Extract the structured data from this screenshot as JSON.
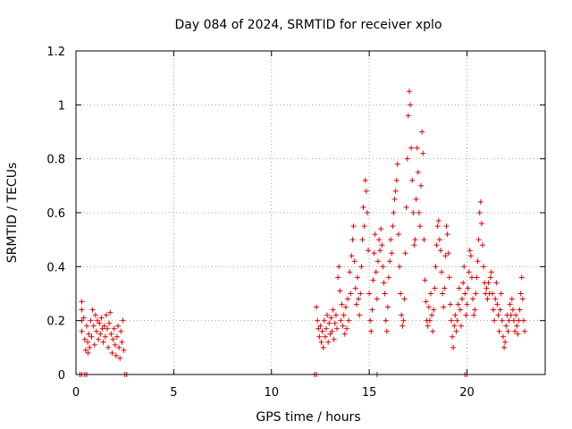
{
  "chart_data": {
    "type": "scatter",
    "title": "Day 084 of 2024, SRMTID for receiver xplo",
    "xlabel": "GPS time / hours",
    "ylabel": "SRMTID / TECUs",
    "xlim": [
      0,
      24
    ],
    "ylim": [
      0,
      1.2
    ],
    "x_ticks": [
      0,
      5,
      10,
      15,
      20
    ],
    "y_ticks": [
      0,
      0.2,
      0.4,
      0.6,
      0.8,
      1.0,
      1.2
    ],
    "x_tick_labels": [
      "0",
      "5",
      "10",
      "15",
      "20"
    ],
    "y_tick_labels": [
      "0",
      "0.2",
      "0.4",
      "0.6",
      "0.8",
      "1",
      "1.2"
    ],
    "grid": true,
    "marker": "+",
    "color": "#e00000",
    "series": [
      {
        "name": "SRMTID",
        "points": [
          [
            0.2,
            0.0
          ],
          [
            0.3,
            0.0
          ],
          [
            0.45,
            0.0
          ],
          [
            0.55,
            0.0
          ],
          [
            2.5,
            0.0
          ],
          [
            2.6,
            0.0
          ],
          [
            12.2,
            0.0
          ],
          [
            12.3,
            0.0
          ],
          [
            15.4,
            0.0
          ],
          [
            19.9,
            0.0
          ],
          [
            20.0,
            0.0
          ],
          [
            0.3,
            0.27
          ],
          [
            0.3,
            0.24
          ],
          [
            0.3,
            0.2
          ],
          [
            0.3,
            0.16
          ],
          [
            0.4,
            0.21
          ],
          [
            0.45,
            0.13
          ],
          [
            0.5,
            0.09
          ],
          [
            0.55,
            0.18
          ],
          [
            0.6,
            0.12
          ],
          [
            0.62,
            0.08
          ],
          [
            0.65,
            0.15
          ],
          [
            0.7,
            0.1
          ],
          [
            0.75,
            0.2
          ],
          [
            0.8,
            0.14
          ],
          [
            0.85,
            0.24
          ],
          [
            0.9,
            0.18
          ],
          [
            0.95,
            0.11
          ],
          [
            1.0,
            0.22
          ],
          [
            1.05,
            0.16
          ],
          [
            1.1,
            0.2
          ],
          [
            1.15,
            0.13
          ],
          [
            1.2,
            0.19
          ],
          [
            1.25,
            0.15
          ],
          [
            1.3,
            0.21
          ],
          [
            1.35,
            0.17
          ],
          [
            1.4,
            0.12
          ],
          [
            1.45,
            0.18
          ],
          [
            1.5,
            0.14
          ],
          [
            1.55,
            0.22
          ],
          [
            1.6,
            0.17
          ],
          [
            1.65,
            0.1
          ],
          [
            1.7,
            0.19
          ],
          [
            1.75,
            0.23
          ],
          [
            1.8,
            0.15
          ],
          [
            1.85,
            0.08
          ],
          [
            1.9,
            0.13
          ],
          [
            1.95,
            0.17
          ],
          [
            2.0,
            0.11
          ],
          [
            2.05,
            0.07
          ],
          [
            2.1,
            0.14
          ],
          [
            2.15,
            0.18
          ],
          [
            2.2,
            0.1
          ],
          [
            2.25,
            0.06
          ],
          [
            2.3,
            0.16
          ],
          [
            2.35,
            0.12
          ],
          [
            2.4,
            0.2
          ],
          [
            2.45,
            0.09
          ],
          [
            12.3,
            0.25
          ],
          [
            12.35,
            0.2
          ],
          [
            12.4,
            0.17
          ],
          [
            12.45,
            0.14
          ],
          [
            12.5,
            0.18
          ],
          [
            12.55,
            0.12
          ],
          [
            12.6,
            0.16
          ],
          [
            12.65,
            0.1
          ],
          [
            12.7,
            0.2
          ],
          [
            12.75,
            0.14
          ],
          [
            12.8,
            0.17
          ],
          [
            12.85,
            0.22
          ],
          [
            12.9,
            0.12
          ],
          [
            12.95,
            0.19
          ],
          [
            13.0,
            0.15
          ],
          [
            13.05,
            0.21
          ],
          [
            13.1,
            0.16
          ],
          [
            13.15,
            0.24
          ],
          [
            13.2,
            0.13
          ],
          [
            13.25,
            0.19
          ],
          [
            13.3,
            0.22
          ],
          [
            13.35,
            0.17
          ],
          [
            13.4,
            0.36
          ],
          [
            13.45,
            0.4
          ],
          [
            13.5,
            0.31
          ],
          [
            13.55,
            0.2
          ],
          [
            13.6,
            0.26
          ],
          [
            13.65,
            0.18
          ],
          [
            13.7,
            0.22
          ],
          [
            13.75,
            0.15
          ],
          [
            13.8,
            0.25
          ],
          [
            13.85,
            0.17
          ],
          [
            13.9,
            0.28
          ],
          [
            13.95,
            0.2
          ],
          [
            14.0,
            0.38
          ],
          [
            14.05,
            0.3
          ],
          [
            14.1,
            0.44
          ],
          [
            14.15,
            0.5
          ],
          [
            14.2,
            0.55
          ],
          [
            14.25,
            0.42
          ],
          [
            14.3,
            0.32
          ],
          [
            14.35,
            0.26
          ],
          [
            14.4,
            0.36
          ],
          [
            14.45,
            0.28
          ],
          [
            14.5,
            0.22
          ],
          [
            14.55,
            0.3
          ],
          [
            14.6,
            0.4
          ],
          [
            14.65,
            0.5
          ],
          [
            14.7,
            0.62
          ],
          [
            14.75,
            0.55
          ],
          [
            14.8,
            0.72
          ],
          [
            14.85,
            0.68
          ],
          [
            14.9,
            0.6
          ],
          [
            14.95,
            0.46
          ],
          [
            15.0,
            0.3
          ],
          [
            15.05,
            0.2
          ],
          [
            15.1,
            0.16
          ],
          [
            15.15,
            0.24
          ],
          [
            15.2,
            0.35
          ],
          [
            15.25,
            0.45
          ],
          [
            15.3,
            0.52
          ],
          [
            15.35,
            0.38
          ],
          [
            15.4,
            0.28
          ],
          [
            15.45,
            0.42
          ],
          [
            15.5,
            0.5
          ],
          [
            15.55,
            0.46
          ],
          [
            15.6,
            0.54
          ],
          [
            15.65,
            0.48
          ],
          [
            15.7,
            0.4
          ],
          [
            15.75,
            0.34
          ],
          [
            15.8,
            0.3
          ],
          [
            15.85,
            0.2
          ],
          [
            15.9,
            0.16
          ],
          [
            15.95,
            0.25
          ],
          [
            16.0,
            0.36
          ],
          [
            16.05,
            0.42
          ],
          [
            16.1,
            0.5
          ],
          [
            16.15,
            0.45
          ],
          [
            16.2,
            0.55
          ],
          [
            16.25,
            0.6
          ],
          [
            16.3,
            0.65
          ],
          [
            16.35,
            0.68
          ],
          [
            16.4,
            0.72
          ],
          [
            16.45,
            0.78
          ],
          [
            16.5,
            0.52
          ],
          [
            16.55,
            0.4
          ],
          [
            16.6,
            0.3
          ],
          [
            16.65,
            0.22
          ],
          [
            16.7,
            0.18
          ],
          [
            16.75,
            0.2
          ],
          [
            16.8,
            0.28
          ],
          [
            16.85,
            0.45
          ],
          [
            16.9,
            0.62
          ],
          [
            16.95,
            0.8
          ],
          [
            17.0,
            0.96
          ],
          [
            17.05,
            1.05
          ],
          [
            17.1,
            1.0
          ],
          [
            17.15,
            0.84
          ],
          [
            17.2,
            0.72
          ],
          [
            17.25,
            0.6
          ],
          [
            17.3,
            0.48
          ],
          [
            17.35,
            0.5
          ],
          [
            17.4,
            0.65
          ],
          [
            17.45,
            0.84
          ],
          [
            17.5,
            0.75
          ],
          [
            17.55,
            0.6
          ],
          [
            17.6,
            0.55
          ],
          [
            17.65,
            0.7
          ],
          [
            17.7,
            0.9
          ],
          [
            17.75,
            0.82
          ],
          [
            17.8,
            0.5
          ],
          [
            17.85,
            0.35
          ],
          [
            17.9,
            0.27
          ],
          [
            17.95,
            0.2
          ],
          [
            18.0,
            0.18
          ],
          [
            18.05,
            0.25
          ],
          [
            18.1,
            0.2
          ],
          [
            18.15,
            0.3
          ],
          [
            18.2,
            0.22
          ],
          [
            18.25,
            0.16
          ],
          [
            18.3,
            0.24
          ],
          [
            18.35,
            0.32
          ],
          [
            18.4,
            0.4
          ],
          [
            18.45,
            0.48
          ],
          [
            18.5,
            0.55
          ],
          [
            18.55,
            0.57
          ],
          [
            18.6,
            0.5
          ],
          [
            18.65,
            0.46
          ],
          [
            18.7,
            0.38
          ],
          [
            18.75,
            0.3
          ],
          [
            18.8,
            0.25
          ],
          [
            18.85,
            0.32
          ],
          [
            18.9,
            0.44
          ],
          [
            18.95,
            0.55
          ],
          [
            19.0,
            0.52
          ],
          [
            19.05,
            0.45
          ],
          [
            19.1,
            0.36
          ],
          [
            19.15,
            0.26
          ],
          [
            19.2,
            0.2
          ],
          [
            19.25,
            0.14
          ],
          [
            19.3,
            0.1
          ],
          [
            19.35,
            0.18
          ],
          [
            19.4,
            0.22
          ],
          [
            19.45,
            0.16
          ],
          [
            19.5,
            0.2
          ],
          [
            19.55,
            0.26
          ],
          [
            19.6,
            0.32
          ],
          [
            19.65,
            0.24
          ],
          [
            19.7,
            0.18
          ],
          [
            19.75,
            0.28
          ],
          [
            19.8,
            0.34
          ],
          [
            19.85,
            0.4
          ],
          [
            19.9,
            0.3
          ],
          [
            19.95,
            0.22
          ],
          [
            20.0,
            0.26
          ],
          [
            20.05,
            0.32
          ],
          [
            20.1,
            0.38
          ],
          [
            20.15,
            0.46
          ],
          [
            20.2,
            0.44
          ],
          [
            20.25,
            0.36
          ],
          [
            20.3,
            0.28
          ],
          [
            20.35,
            0.22
          ],
          [
            20.4,
            0.24
          ],
          [
            20.45,
            0.3
          ],
          [
            20.5,
            0.36
          ],
          [
            20.55,
            0.42
          ],
          [
            20.6,
            0.5
          ],
          [
            20.65,
            0.6
          ],
          [
            20.7,
            0.64
          ],
          [
            20.75,
            0.56
          ],
          [
            20.8,
            0.48
          ],
          [
            20.85,
            0.4
          ],
          [
            20.9,
            0.34
          ],
          [
            20.95,
            0.3
          ],
          [
            21.0,
            0.32
          ],
          [
            21.05,
            0.28
          ],
          [
            21.1,
            0.34
          ],
          [
            21.15,
            0.3
          ],
          [
            21.2,
            0.36
          ],
          [
            21.25,
            0.38
          ],
          [
            21.3,
            0.3
          ],
          [
            21.35,
            0.24
          ],
          [
            21.4,
            0.2
          ],
          [
            21.45,
            0.28
          ],
          [
            21.5,
            0.34
          ],
          [
            21.55,
            0.26
          ],
          [
            21.6,
            0.22
          ],
          [
            21.65,
            0.16
          ],
          [
            21.7,
            0.24
          ],
          [
            21.75,
            0.3
          ],
          [
            21.8,
            0.2
          ],
          [
            21.85,
            0.14
          ],
          [
            21.9,
            0.1
          ],
          [
            21.95,
            0.12
          ],
          [
            22.0,
            0.18
          ],
          [
            22.05,
            0.22
          ],
          [
            22.1,
            0.16
          ],
          [
            22.15,
            0.2
          ],
          [
            22.2,
            0.26
          ],
          [
            22.25,
            0.22
          ],
          [
            22.3,
            0.28
          ],
          [
            22.35,
            0.24
          ],
          [
            22.4,
            0.2
          ],
          [
            22.45,
            0.16
          ],
          [
            22.5,
            0.22
          ],
          [
            22.55,
            0.18
          ],
          [
            22.6,
            0.15
          ],
          [
            22.65,
            0.2
          ],
          [
            22.7,
            0.24
          ],
          [
            22.75,
            0.3
          ],
          [
            22.8,
            0.36
          ],
          [
            22.85,
            0.28
          ],
          [
            22.9,
            0.2
          ],
          [
            22.95,
            0.16
          ]
        ]
      }
    ]
  }
}
